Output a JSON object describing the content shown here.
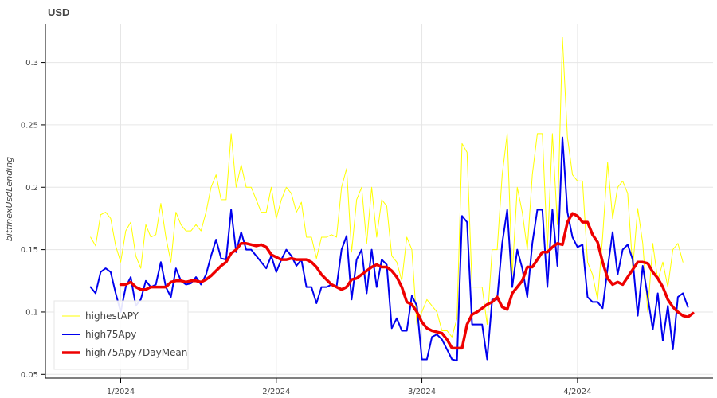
{
  "chart_data": {
    "type": "line",
    "title": "USD",
    "xlabel": "",
    "ylabel": "bitfinexUsdLending",
    "x_start": "2023-12-26",
    "x_end": "2024-04-23",
    "xlim": [
      "2023-12-17",
      "2024-04-28"
    ],
    "ylim": [
      0.047,
      0.331
    ],
    "grid": true,
    "legend_position": "bottom-left",
    "x_ticks": [
      {
        "date": "2024-01-01",
        "label": "1/2024"
      },
      {
        "date": "2024-02-01",
        "label": "2/2024"
      },
      {
        "date": "2024-03-01",
        "label": "3/2024"
      },
      {
        "date": "2024-04-01",
        "label": "4/2024"
      }
    ],
    "y_ticks": [
      {
        "value": 0.05,
        "label": "0.05"
      },
      {
        "value": 0.1,
        "label": "0.1"
      },
      {
        "value": 0.15,
        "label": "0.15"
      },
      {
        "value": 0.2,
        "label": "0.2"
      },
      {
        "value": 0.25,
        "label": "0.25"
      },
      {
        "value": 0.3,
        "label": "0.3"
      }
    ],
    "series": [
      {
        "name": "highestAPY",
        "color": "#ffff00",
        "width": 1,
        "start_index": 0,
        "values": [
          0.16,
          0.153,
          0.178,
          0.18,
          0.175,
          0.153,
          0.14,
          0.165,
          0.172,
          0.145,
          0.135,
          0.17,
          0.16,
          0.162,
          0.187,
          0.16,
          0.14,
          0.18,
          0.17,
          0.165,
          0.165,
          0.17,
          0.165,
          0.18,
          0.2,
          0.21,
          0.19,
          0.19,
          0.243,
          0.2,
          0.218,
          0.2,
          0.2,
          0.19,
          0.18,
          0.18,
          0.2,
          0.175,
          0.19,
          0.2,
          0.195,
          0.18,
          0.188,
          0.16,
          0.16,
          0.143,
          0.16,
          0.16,
          0.162,
          0.16,
          0.2,
          0.215,
          0.148,
          0.19,
          0.2,
          0.155,
          0.2,
          0.16,
          0.19,
          0.185,
          0.145,
          0.14,
          0.125,
          0.16,
          0.15,
          0.09,
          0.1,
          0.11,
          0.105,
          0.1,
          0.085,
          0.085,
          0.08,
          0.095,
          0.235,
          0.228,
          0.12,
          0.12,
          0.12,
          0.09,
          0.15,
          0.15,
          0.21,
          0.243,
          0.13,
          0.2,
          0.18,
          0.15,
          0.21,
          0.243,
          0.243,
          0.15,
          0.243,
          0.17,
          0.32,
          0.24,
          0.21,
          0.205,
          0.205,
          0.14,
          0.13,
          0.11,
          0.16,
          0.22,
          0.175,
          0.2,
          0.205,
          0.195,
          0.135,
          0.183,
          0.155,
          0.1,
          0.155,
          0.125,
          0.14,
          0.12,
          0.15,
          0.155,
          0.14
        ]
      },
      {
        "name": "high75Apy",
        "color": "#0000ee",
        "width": 2,
        "start_index": 0,
        "values": [
          0.12,
          0.115,
          0.132,
          0.135,
          0.132,
          0.115,
          0.1,
          0.12,
          0.128,
          0.105,
          0.11,
          0.125,
          0.12,
          0.122,
          0.14,
          0.12,
          0.112,
          0.135,
          0.125,
          0.122,
          0.123,
          0.128,
          0.122,
          0.13,
          0.145,
          0.158,
          0.143,
          0.142,
          0.182,
          0.148,
          0.164,
          0.15,
          0.15,
          0.145,
          0.14,
          0.135,
          0.145,
          0.132,
          0.142,
          0.15,
          0.145,
          0.137,
          0.142,
          0.12,
          0.12,
          0.107,
          0.12,
          0.12,
          0.122,
          0.12,
          0.15,
          0.161,
          0.11,
          0.142,
          0.15,
          0.115,
          0.15,
          0.12,
          0.142,
          0.138,
          0.087,
          0.095,
          0.085,
          0.085,
          0.113,
          0.105,
          0.062,
          0.062,
          0.08,
          0.082,
          0.078,
          0.07,
          0.062,
          0.061,
          0.177,
          0.172,
          0.09,
          0.09,
          0.09,
          0.062,
          0.11,
          0.11,
          0.155,
          0.182,
          0.12,
          0.15,
          0.135,
          0.112,
          0.155,
          0.182,
          0.182,
          0.12,
          0.182,
          0.137,
          0.24,
          0.18,
          0.16,
          0.152,
          0.154,
          0.112,
          0.108,
          0.108,
          0.103,
          0.135,
          0.164,
          0.13,
          0.15,
          0.154,
          0.142,
          0.097,
          0.137,
          0.112,
          0.086,
          0.115,
          0.077,
          0.105,
          0.07,
          0.112,
          0.115,
          0.104
        ]
      },
      {
        "name": "high75Apy7DayMean",
        "color": "#ee0000",
        "width": 3.5,
        "start_index": 6,
        "values": [
          0.122,
          0.122,
          0.124,
          0.12,
          0.118,
          0.118,
          0.12,
          0.12,
          0.12,
          0.12,
          0.124,
          0.125,
          0.125,
          0.124,
          0.125,
          0.125,
          0.124,
          0.126,
          0.129,
          0.133,
          0.137,
          0.14,
          0.147,
          0.15,
          0.155,
          0.155,
          0.154,
          0.153,
          0.154,
          0.152,
          0.146,
          0.144,
          0.142,
          0.142,
          0.143,
          0.142,
          0.142,
          0.142,
          0.14,
          0.136,
          0.13,
          0.126,
          0.122,
          0.12,
          0.118,
          0.12,
          0.126,
          0.127,
          0.13,
          0.133,
          0.136,
          0.138,
          0.136,
          0.136,
          0.133,
          0.128,
          0.12,
          0.108,
          0.106,
          0.1,
          0.092,
          0.087,
          0.085,
          0.084,
          0.083,
          0.078,
          0.071,
          0.071,
          0.071,
          0.09,
          0.098,
          0.1,
          0.103,
          0.106,
          0.108,
          0.112,
          0.104,
          0.102,
          0.115,
          0.12,
          0.125,
          0.136,
          0.136,
          0.142,
          0.148,
          0.148,
          0.152,
          0.155,
          0.154,
          0.172,
          0.179,
          0.177,
          0.172,
          0.172,
          0.162,
          0.156,
          0.14,
          0.127,
          0.122,
          0.124,
          0.122,
          0.128,
          0.134,
          0.14,
          0.14,
          0.139,
          0.132,
          0.127,
          0.12,
          0.11,
          0.104,
          0.1,
          0.097,
          0.096,
          0.099
        ]
      }
    ]
  }
}
